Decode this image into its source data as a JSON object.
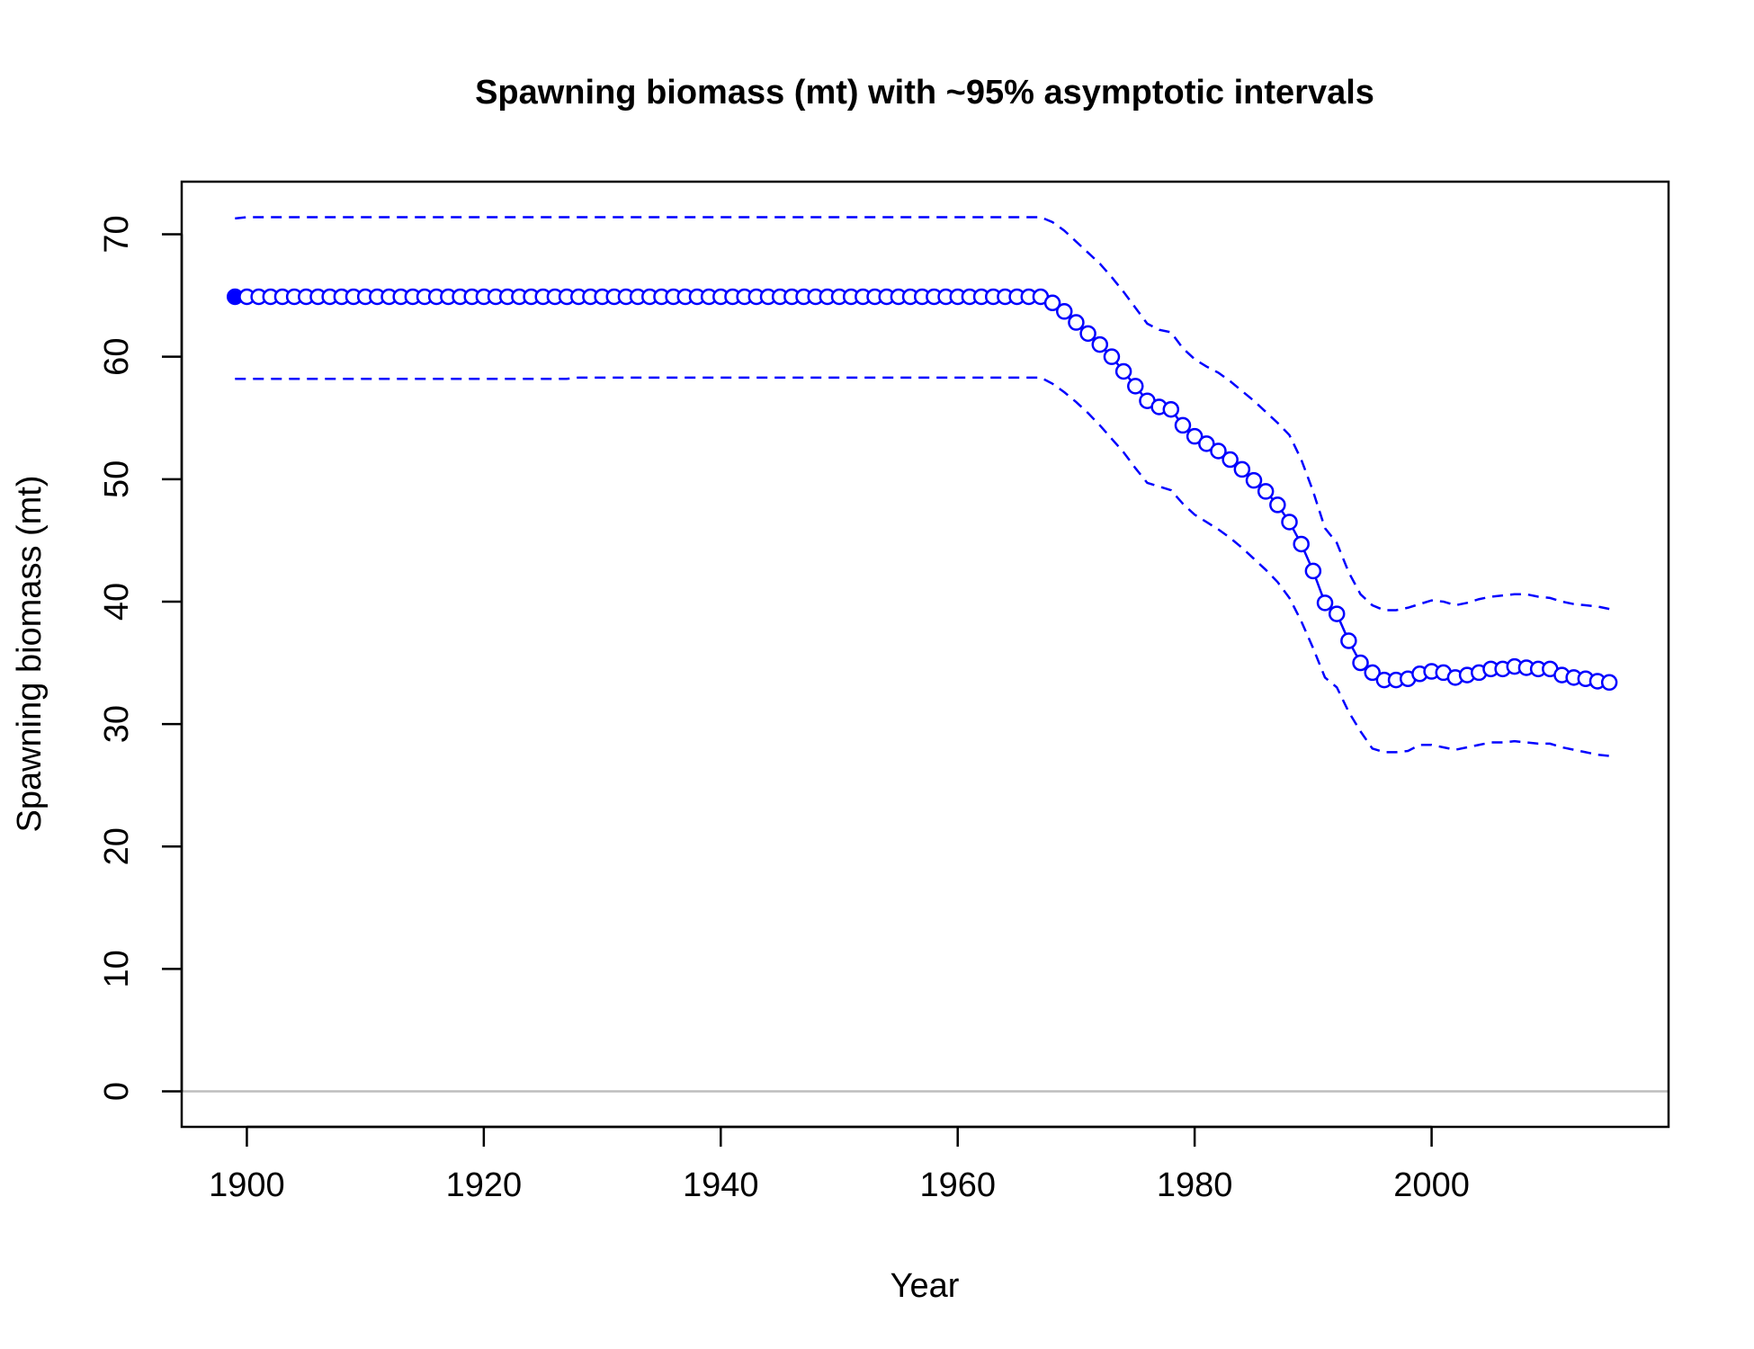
{
  "chart_data": {
    "type": "line",
    "title": "Spawning biomass (mt) with ~95% asymptotic intervals",
    "xlabel": "Year",
    "ylabel": "Spawning biomass (mt)",
    "xlim": [
      1894.5,
      2020
    ],
    "ylim": [
      -2.9,
      74.3
    ],
    "xticks": [
      1900,
      1920,
      1940,
      1960,
      1980,
      2000
    ],
    "yticks": [
      0,
      10,
      20,
      30,
      40,
      50,
      60,
      70
    ],
    "grid": false,
    "reference_line": {
      "y": 0,
      "color": "#bebebe"
    },
    "colors": {
      "series": "#0000ff",
      "axis": "#000000"
    },
    "x": [
      1899,
      1900,
      1901,
      1902,
      1903,
      1904,
      1905,
      1906,
      1907,
      1908,
      1909,
      1910,
      1911,
      1912,
      1913,
      1914,
      1915,
      1916,
      1917,
      1918,
      1919,
      1920,
      1921,
      1922,
      1923,
      1924,
      1925,
      1926,
      1927,
      1928,
      1929,
      1930,
      1931,
      1932,
      1933,
      1934,
      1935,
      1936,
      1937,
      1938,
      1939,
      1940,
      1941,
      1942,
      1943,
      1944,
      1945,
      1946,
      1947,
      1948,
      1949,
      1950,
      1951,
      1952,
      1953,
      1954,
      1955,
      1956,
      1957,
      1958,
      1959,
      1960,
      1961,
      1962,
      1963,
      1964,
      1965,
      1966,
      1967,
      1968,
      1969,
      1970,
      1971,
      1972,
      1973,
      1974,
      1975,
      1976,
      1977,
      1978,
      1979,
      1980,
      1981,
      1982,
      1983,
      1984,
      1985,
      1986,
      1987,
      1988,
      1989,
      1990,
      1991,
      1992,
      1993,
      1994,
      1995,
      1996,
      1997,
      1998,
      1999,
      2000,
      2001,
      2002,
      2003,
      2004,
      2005,
      2006,
      2007,
      2008,
      2009,
      2010,
      2011,
      2012,
      2013,
      2014,
      2015
    ],
    "series": [
      {
        "role": "estimate",
        "style": "solid line with open circles (first point filled)",
        "values": [
          64.9,
          64.9,
          64.9,
          64.9,
          64.9,
          64.9,
          64.9,
          64.9,
          64.9,
          64.9,
          64.9,
          64.9,
          64.9,
          64.9,
          64.9,
          64.9,
          64.9,
          64.9,
          64.9,
          64.9,
          64.9,
          64.9,
          64.9,
          64.9,
          64.9,
          64.9,
          64.9,
          64.9,
          64.9,
          64.9,
          64.9,
          64.9,
          64.9,
          64.9,
          64.9,
          64.9,
          64.9,
          64.9,
          64.9,
          64.9,
          64.9,
          64.9,
          64.9,
          64.9,
          64.9,
          64.9,
          64.9,
          64.9,
          64.9,
          64.9,
          64.9,
          64.9,
          64.9,
          64.9,
          64.9,
          64.9,
          64.9,
          64.9,
          64.9,
          64.9,
          64.9,
          64.9,
          64.9,
          64.9,
          64.9,
          64.9,
          64.9,
          64.9,
          64.9,
          64.4,
          63.7,
          62.8,
          61.9,
          61.0,
          60.0,
          58.8,
          57.6,
          56.4,
          55.9,
          55.7,
          54.4,
          53.5,
          52.9,
          52.3,
          51.6,
          50.8,
          49.9,
          49.0,
          47.9,
          46.5,
          44.7,
          42.5,
          39.9,
          39.0,
          36.8,
          35.0,
          34.2,
          33.6,
          33.6,
          33.7,
          34.1,
          34.3,
          34.2,
          33.8,
          34.0,
          34.2,
          34.5,
          34.5,
          34.7,
          34.6,
          34.5,
          34.5,
          34.0,
          33.8,
          33.7,
          33.5,
          33.4
        ]
      },
      {
        "role": "upper 95% interval",
        "style": "dashed line",
        "values": [
          71.3,
          71.4,
          71.4,
          71.4,
          71.4,
          71.4,
          71.4,
          71.4,
          71.4,
          71.4,
          71.4,
          71.4,
          71.4,
          71.4,
          71.4,
          71.4,
          71.4,
          71.4,
          71.4,
          71.4,
          71.4,
          71.4,
          71.4,
          71.4,
          71.4,
          71.4,
          71.4,
          71.4,
          71.4,
          71.4,
          71.4,
          71.4,
          71.4,
          71.4,
          71.4,
          71.4,
          71.4,
          71.4,
          71.4,
          71.4,
          71.4,
          71.4,
          71.4,
          71.4,
          71.4,
          71.4,
          71.4,
          71.4,
          71.4,
          71.4,
          71.4,
          71.4,
          71.4,
          71.4,
          71.4,
          71.4,
          71.4,
          71.4,
          71.4,
          71.4,
          71.4,
          71.4,
          71.4,
          71.4,
          71.4,
          71.4,
          71.4,
          71.4,
          71.4,
          71.0,
          70.3,
          69.4,
          68.5,
          67.6,
          66.5,
          65.3,
          64.0,
          62.7,
          62.2,
          62.0,
          60.7,
          59.8,
          59.2,
          58.7,
          58.0,
          57.2,
          56.4,
          55.5,
          54.6,
          53.6,
          51.6,
          49.0,
          46.0,
          44.8,
          42.4,
          40.6,
          39.7,
          39.3,
          39.3,
          39.5,
          39.8,
          40.1,
          40.0,
          39.7,
          39.9,
          40.2,
          40.4,
          40.5,
          40.6,
          40.6,
          40.4,
          40.3,
          40.0,
          39.8,
          39.7,
          39.6,
          39.4
        ]
      },
      {
        "role": "lower 95% interval",
        "style": "dashed line",
        "values": [
          58.2,
          58.2,
          58.2,
          58.2,
          58.2,
          58.2,
          58.2,
          58.2,
          58.2,
          58.2,
          58.2,
          58.2,
          58.2,
          58.2,
          58.2,
          58.2,
          58.2,
          58.2,
          58.2,
          58.2,
          58.2,
          58.2,
          58.2,
          58.2,
          58.2,
          58.2,
          58.2,
          58.2,
          58.2,
          58.3,
          58.3,
          58.3,
          58.3,
          58.3,
          58.3,
          58.3,
          58.3,
          58.3,
          58.3,
          58.3,
          58.3,
          58.3,
          58.3,
          58.3,
          58.3,
          58.3,
          58.3,
          58.3,
          58.3,
          58.3,
          58.3,
          58.3,
          58.3,
          58.3,
          58.3,
          58.3,
          58.3,
          58.3,
          58.3,
          58.3,
          58.3,
          58.3,
          58.3,
          58.3,
          58.3,
          58.3,
          58.3,
          58.3,
          58.3,
          57.8,
          57.1,
          56.3,
          55.4,
          54.4,
          53.3,
          52.2,
          50.9,
          49.7,
          49.4,
          49.1,
          48.0,
          47.1,
          46.5,
          45.9,
          45.2,
          44.4,
          43.5,
          42.6,
          41.6,
          40.3,
          38.4,
          36.2,
          33.8,
          33.0,
          31.0,
          29.4,
          28.0,
          27.7,
          27.7,
          27.8,
          28.3,
          28.3,
          28.1,
          27.9,
          28.1,
          28.3,
          28.5,
          28.5,
          28.6,
          28.5,
          28.4,
          28.4,
          28.1,
          27.9,
          27.7,
          27.5,
          27.4
        ]
      }
    ]
  }
}
